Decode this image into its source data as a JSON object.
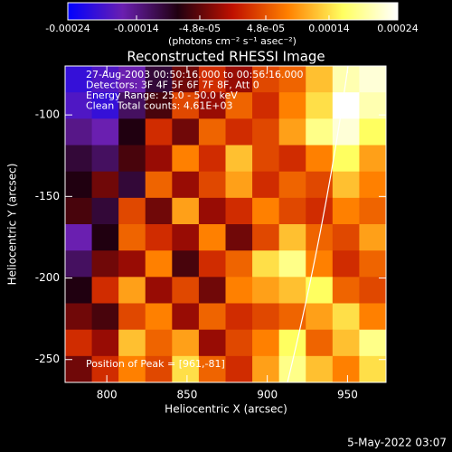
{
  "chart_data": {
    "type": "heatmap",
    "title": "Reconstructed RHESSI Image",
    "xlabel": "Heliocentric X (arcsec)",
    "ylabel": "Heliocentric Y (arcsec)",
    "xlim": [
      774,
      974
    ],
    "ylim": [
      -264,
      -70
    ],
    "xticks": [
      800,
      850,
      900,
      950
    ],
    "yticks": [
      -100,
      -150,
      -200,
      -250
    ],
    "colorbar": {
      "label": "(photons cm⁻² s⁻¹ asec⁻²)",
      "clim": [
        -0.00024,
        0.00024
      ],
      "ticks": [
        -0.00024,
        -0.00014,
        {
          "value": -4.8e-05,
          "label": "-4.8e-05"
        },
        {
          "value": 4.8e-05,
          "label": "4.8e-05"
        },
        0.00014,
        0.00024
      ],
      "colorscale": [
        "#0000ff",
        "#6a1fb0",
        "#200010",
        "#c01000",
        "#ff8000",
        "#ffff60",
        "#ffffff"
      ]
    },
    "annotations": [
      "27-Aug-2003 00:50:16.000 to 00:56:16.000",
      "Detectors: 3F 4F 5F 6F 7F 8F, Att 0",
      "Energy Range: 25.0 - 50.0 keV",
      "Clean     Total counts: 4.61E+03"
    ],
    "peak_label": "Position of Peak = [961,-81]",
    "footer": "5-May-2022 03:07",
    "z": [
      [
        -0.0002,
        -0.00018,
        -0.00016,
        -0.0001,
        -4e-05,
        2e-05,
        -2e-05,
        4e-05,
        6e-05,
        0.00012,
        0.0002,
        0.00022
      ],
      [
        -0.00018,
        -0.0002,
        -0.00012,
        -6e-05,
        4e-05,
        -2e-05,
        6e-05,
        2e-05,
        8e-05,
        0.00014,
        0.00024,
        0.0002
      ],
      [
        -0.00014,
        -0.00016,
        -8e-05,
        2e-05,
        -4e-05,
        6e-05,
        2e-05,
        4e-05,
        0.0001,
        0.00018,
        0.00022,
        0.00016
      ],
      [
        -0.0001,
        -0.00012,
        -6e-05,
        -2e-05,
        8e-05,
        2e-05,
        0.00012,
        4e-05,
        2e-05,
        8e-05,
        0.00016,
        0.0001
      ],
      [
        -8e-05,
        -4e-05,
        -0.0001,
        6e-05,
        -2e-05,
        4e-05,
        0.0001,
        2e-05,
        6e-05,
        4e-05,
        0.00012,
        8e-05
      ],
      [
        -6e-05,
        -0.0001,
        4e-05,
        -4e-05,
        0.0001,
        -2e-05,
        2e-05,
        8e-05,
        4e-05,
        2e-05,
        8e-05,
        6e-05
      ],
      [
        -0.00016,
        -8e-05,
        6e-05,
        2e-05,
        -2e-05,
        8e-05,
        -4e-05,
        4e-05,
        0.00012,
        6e-05,
        4e-05,
        0.0001
      ],
      [
        -0.00012,
        -4e-05,
        -2e-05,
        8e-05,
        -6e-05,
        2e-05,
        6e-05,
        0.00014,
        0.00018,
        8e-05,
        2e-05,
        6e-05
      ],
      [
        -8e-05,
        2e-05,
        0.0001,
        -2e-05,
        4e-05,
        -4e-05,
        8e-05,
        0.0001,
        0.00012,
        0.00016,
        6e-05,
        4e-05
      ],
      [
        -4e-05,
        -6e-05,
        4e-05,
        8e-05,
        -2e-05,
        6e-05,
        2e-05,
        4e-05,
        6e-05,
        0.0001,
        0.00014,
        8e-05
      ],
      [
        2e-05,
        -2e-05,
        0.00012,
        6e-05,
        0.0001,
        -2e-05,
        4e-05,
        8e-05,
        0.00016,
        6e-05,
        0.00012,
        0.00018
      ],
      [
        -4e-05,
        2e-05,
        8e-05,
        4e-05,
        0.00014,
        6e-05,
        2e-05,
        0.0001,
        0.00018,
        0.00012,
        8e-05,
        0.00014
      ]
    ]
  }
}
